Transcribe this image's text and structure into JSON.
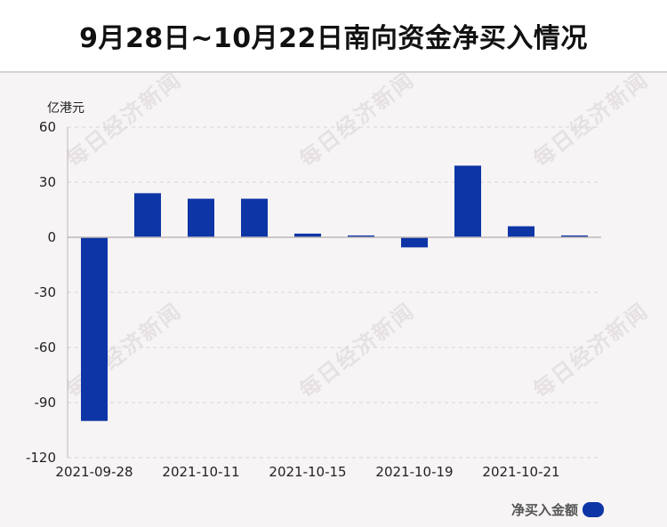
{
  "title": "9月28日~10月22日南向资金净买入情况",
  "watermark": "每日经济新闻",
  "colors": {
    "bar": "#0d35a6",
    "grid": "#d8d3d4",
    "axis": "#bdb6b8",
    "text": "#222222"
  },
  "chart_data": {
    "type": "bar",
    "title": "9月28日~10月22日南向资金净买入情况",
    "ylabel": "亿港元",
    "xlabel": "",
    "ylim": [
      -120,
      60
    ],
    "yticks": [
      60,
      30,
      0,
      -30,
      -60,
      -90,
      -120
    ],
    "categories": [
      "2021-09-28",
      "",
      "2021-10-11",
      "",
      "2021-10-15",
      "",
      "2021-10-19",
      "",
      "2021-10-21",
      ""
    ],
    "series": [
      {
        "name": "净买入金额",
        "values": [
          -100,
          24,
          21,
          21,
          2,
          1,
          -5.5,
          39,
          6,
          1
        ]
      }
    ],
    "grid": true,
    "legend": "bottom-right"
  }
}
